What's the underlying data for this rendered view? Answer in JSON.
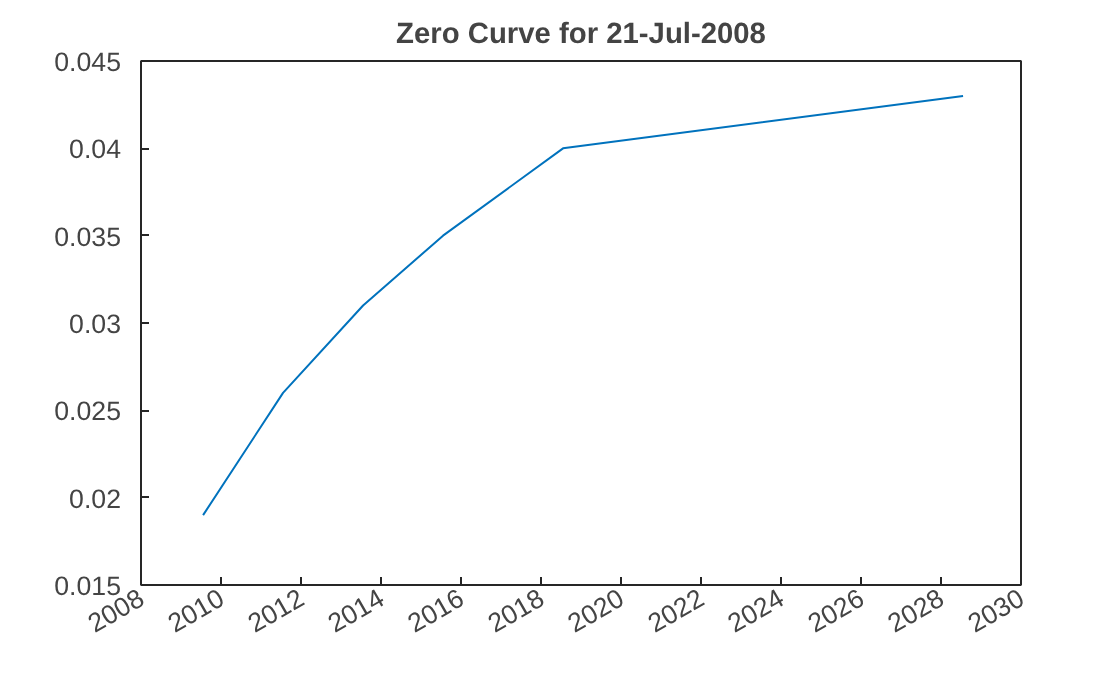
{
  "chart_data": {
    "type": "line",
    "title": "Zero Curve for 21-Jul-2008",
    "x": [
      "2009-07-21",
      "2011-07-21",
      "2013-07-21",
      "2015-07-21",
      "2018-07-21",
      "2028-07-21"
    ],
    "series": [
      {
        "color": "#0072bd",
        "values": [
          0.019,
          0.026,
          0.031,
          0.035,
          0.04,
          0.043
        ]
      }
    ],
    "xlim": [
      "2008",
      "2030"
    ],
    "xticks": [
      "2008",
      "2010",
      "2012",
      "2014",
      "2016",
      "2018",
      "2020",
      "2022",
      "2024",
      "2026",
      "2028",
      "2030"
    ],
    "ylim": [
      0.015,
      0.045
    ],
    "yticks": [
      0.015,
      0.02,
      0.025,
      0.03,
      0.035,
      0.04,
      0.045
    ],
    "marker": "none",
    "line_style": "solid"
  }
}
